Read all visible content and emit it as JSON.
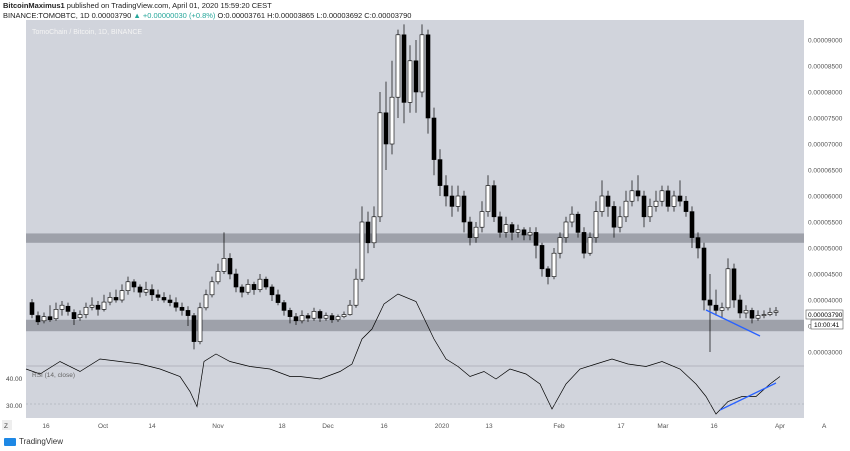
{
  "header": {
    "author": "BitcoinMaximus1",
    "published_text": " published on TradingView.com, April 01, 2020 15:59:20 CEST",
    "symbol_line": "BINANCE:TOMOBTC, 1D 0.00003790",
    "change": "▲ +0.00000030 (+0.8%)",
    "ohlc": "O:0.00003761 H:0.00003865 L:0.00003692 C:0.00003790"
  },
  "chart": {
    "watermark": "TomoChain / Bitcoin, 1D, BINANCE",
    "price_ticks": [
      "0.00009000",
      "0.00008500",
      "0.00008000",
      "0.00007500",
      "0.00007000",
      "0.00006500",
      "0.00006000",
      "0.00005500",
      "0.00005000",
      "0.00004500",
      "0.00004000",
      "0.00003500",
      "0.00003000"
    ],
    "price_tag": "0.00003790",
    "countdown": "10:00:41",
    "date_ticks": [
      "16",
      "Oct",
      "14",
      "Nov",
      "18",
      "Dec",
      "16",
      "2020",
      "13",
      "Feb",
      "17",
      "Mar",
      "16",
      "Apr"
    ],
    "rsi_label": "RSI (14, close)",
    "rsi_ticks": [
      "40.00",
      "30.00"
    ],
    "z_label": "Z",
    "a_label": "A",
    "colors": {
      "pane": "#d1d4dc",
      "band": "#9598a1",
      "trend": "#2962ff",
      "up": "#ffffff",
      "down": "#000000"
    },
    "support_zones": [
      [
        3.4e-05,
        3.62e-05
      ],
      [
        5.1e-05,
        5.28e-05
      ]
    ]
  },
  "footer": {
    "brand": "TradingView"
  }
}
